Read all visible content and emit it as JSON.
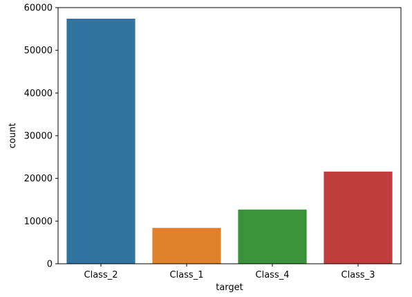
{
  "chart_data": {
    "type": "bar",
    "title": "",
    "xlabel": "target",
    "ylabel": "count",
    "categories": [
      "Class_2",
      "Class_1",
      "Class_4",
      "Class_3"
    ],
    "values": [
      57400,
      8400,
      12700,
      21600
    ],
    "colors": [
      "#3274a1",
      "#e1812c",
      "#3a923a",
      "#c03d3e"
    ],
    "ylim": [
      0,
      60000
    ],
    "yticks": [
      0,
      10000,
      20000,
      30000,
      40000,
      50000,
      60000
    ],
    "grid": false,
    "legend": "none"
  }
}
